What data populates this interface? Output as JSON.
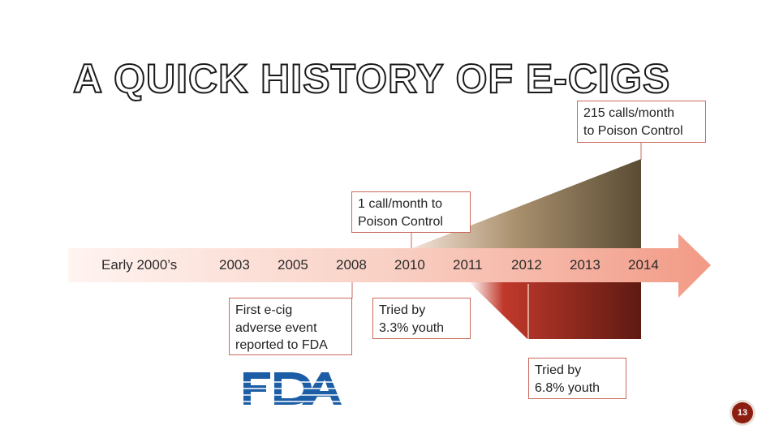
{
  "slide": {
    "title": "A QUICK HISTORY OF E-CIGS",
    "timeline": {
      "years": [
        "Early 2000’s",
        "2003",
        "2005",
        "2008",
        "2010",
        "2011",
        "2012",
        "2013",
        "2014"
      ]
    },
    "callouts": {
      "poison_2010": [
        "1 call/month to",
        "Poison Control"
      ],
      "poison_2014": [
        "215 calls/month",
        "to Poison Control"
      ],
      "fda_2008": [
        "First e-cig",
        "adverse event",
        "reported to FDA"
      ],
      "youth_2011": [
        "Tried by",
        "3.3% youth"
      ],
      "youth_2012": [
        "Tried by",
        "6.8% youth"
      ]
    },
    "logo_text": "FDA",
    "page_number": "13",
    "colors": {
      "arrow_light": "#fbe3dc",
      "arrow_dark": "#f2a08c",
      "wedge_dark": "#5e5037",
      "wedge_light": "#e8d4c4",
      "youth_dark": "#6e1a12",
      "fda_blue": "#1c5ea6"
    }
  }
}
